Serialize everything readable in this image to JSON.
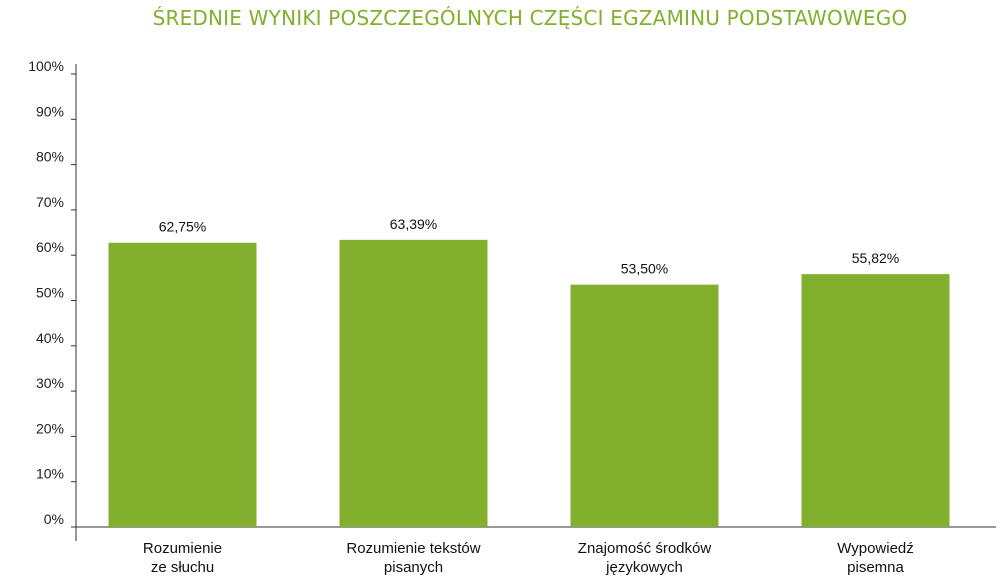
{
  "chart_data": {
    "type": "bar",
    "title": "ŚREDNIE WYNIKI POSZCZEGÓLNYCH CZĘŚCI EGZAMINU PODSTAWOWEGO",
    "categories": [
      [
        "Rozumienie",
        "ze słuchu"
      ],
      [
        "Rozumienie tekstów",
        "pisanych"
      ],
      [
        "Znajomość środków",
        "językowych"
      ],
      [
        "Wypowiedź",
        "pisemna"
      ]
    ],
    "values": [
      62.75,
      63.39,
      53.5,
      55.82
    ],
    "data_labels": [
      "62,75%",
      "63,39%",
      "53,50%",
      "55,82%"
    ],
    "yticks": [
      "0%",
      "10%",
      "20%",
      "30%",
      "40%",
      "50%",
      "60%",
      "70%",
      "80%",
      "90%",
      "100%"
    ],
    "ylim": [
      0,
      100
    ],
    "bar_color": "#82b02e",
    "title_color": "#82b02e",
    "grid": false,
    "legend": "none"
  }
}
